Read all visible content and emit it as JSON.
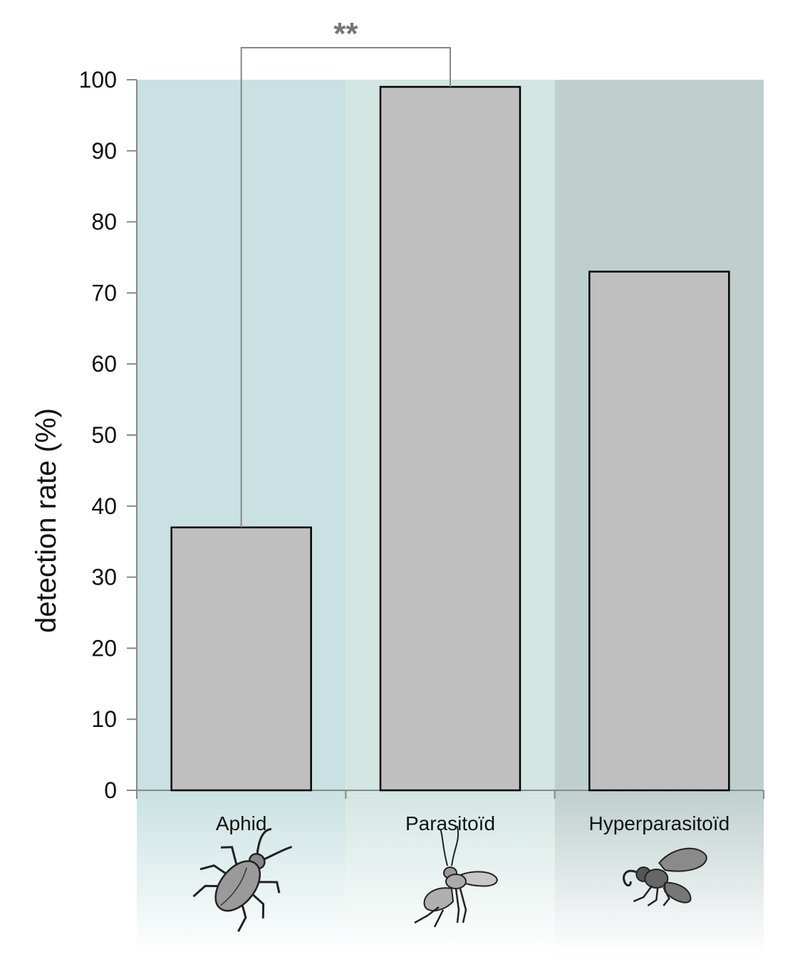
{
  "chart_data": {
    "type": "bar",
    "categories": [
      "Aphid",
      "Parasitoïd",
      "Hyperparasitoïd"
    ],
    "values": [
      37,
      99,
      73
    ],
    "ylabel": "detection rate (%)",
    "xlabel": "",
    "ylim": [
      0,
      100
    ],
    "yticks": [
      0,
      10,
      20,
      30,
      40,
      50,
      60,
      70,
      80,
      90,
      100
    ],
    "ytick_labels": [
      "0",
      "10",
      "20",
      "30",
      "40",
      "50",
      "60",
      "70",
      "80",
      "90",
      "100"
    ],
    "grid": false,
    "legend": "none",
    "annotations": [
      {
        "type": "significance-bracket",
        "label": "**",
        "between": [
          "Aphid",
          "Parasitoïd"
        ]
      }
    ],
    "category_icons": [
      "aphid-icon",
      "parasitoid-wasp-icon",
      "hyperparasitoid-wasp-icon"
    ],
    "colors": {
      "bar_fill": "#bfbfbf",
      "bar_stroke": "#000000",
      "panel_backgrounds": [
        "#c9e1e2",
        "#d3e6e1",
        "#bfcfce"
      ],
      "axis": "#888888",
      "bracket": "#888888"
    }
  }
}
